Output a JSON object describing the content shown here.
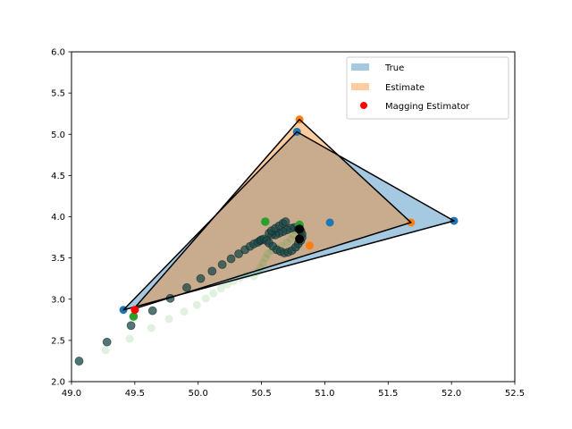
{
  "chart_data": {
    "type": "scatter",
    "xlim": [
      49.0,
      52.5
    ],
    "ylim": [
      2.0,
      6.0
    ],
    "x_ticks": [
      "49.0",
      "49.5",
      "50.0",
      "50.5",
      "51.0",
      "51.5",
      "52.0",
      "52.5"
    ],
    "y_ticks": [
      "2.0",
      "2.5",
      "3.0",
      "3.5",
      "4.0",
      "4.5",
      "5.0",
      "5.5",
      "6.0"
    ],
    "grid": false,
    "legend_position": "top-right",
    "legend": [
      {
        "label": "True",
        "kind": "patch",
        "color": "#1f77b4",
        "alpha": 0.4
      },
      {
        "label": "Estimate",
        "kind": "patch",
        "color": "#ff7f0e",
        "alpha": 0.4
      },
      {
        "label": "Magging Estimator",
        "kind": "marker",
        "color": "#ff0000"
      }
    ],
    "true_triangle": [
      [
        49.41,
        2.87
      ],
      [
        50.78,
        5.03
      ],
      [
        52.02,
        3.95
      ]
    ],
    "estimate_triangle": [
      [
        49.49,
        2.88
      ],
      [
        50.8,
        5.18
      ],
      [
        51.68,
        3.93
      ]
    ],
    "true_points": {
      "color": "#1f77b4",
      "points": [
        [
          49.41,
          2.87
        ],
        [
          50.78,
          5.03
        ],
        [
          52.02,
          3.95
        ],
        [
          51.04,
          3.93
        ]
      ]
    },
    "estimate_points": {
      "color": "#ff7f0e",
      "points": [
        [
          50.8,
          5.18
        ],
        [
          51.68,
          3.93
        ],
        [
          50.88,
          3.65
        ]
      ]
    },
    "magging_estimator": {
      "color": "#ff0000",
      "points": [
        [
          49.5,
          2.87
        ]
      ]
    },
    "path_dark": {
      "color": "#1a4a4a",
      "points": [
        [
          49.06,
          2.25
        ],
        [
          49.28,
          2.48
        ],
        [
          49.47,
          2.68
        ],
        [
          49.64,
          2.86
        ],
        [
          49.78,
          3.01
        ],
        [
          49.91,
          3.14
        ],
        [
          50.02,
          3.25
        ],
        [
          50.11,
          3.34
        ],
        [
          50.19,
          3.42
        ],
        [
          50.26,
          3.49
        ],
        [
          50.32,
          3.55
        ],
        [
          50.37,
          3.6
        ],
        [
          50.41,
          3.64
        ],
        [
          50.44,
          3.67
        ],
        [
          50.47,
          3.69
        ],
        [
          50.49,
          3.71
        ],
        [
          50.5,
          3.72
        ],
        [
          50.52,
          3.73
        ],
        [
          50.54,
          3.71
        ],
        [
          50.56,
          3.68
        ],
        [
          50.59,
          3.64
        ],
        [
          50.62,
          3.6
        ],
        [
          50.65,
          3.58
        ],
        [
          50.68,
          3.56
        ],
        [
          50.71,
          3.57
        ],
        [
          50.74,
          3.59
        ],
        [
          50.77,
          3.63
        ],
        [
          50.79,
          3.67
        ],
        [
          50.81,
          3.71
        ],
        [
          50.82,
          3.75
        ],
        [
          50.82,
          3.79
        ],
        [
          50.81,
          3.83
        ],
        [
          50.79,
          3.86
        ],
        [
          50.76,
          3.87
        ],
        [
          50.73,
          3.86
        ],
        [
          50.7,
          3.84
        ],
        [
          50.67,
          3.82
        ],
        [
          50.64,
          3.8
        ],
        [
          50.61,
          3.78
        ],
        [
          50.58,
          3.78
        ],
        [
          50.56,
          3.8
        ],
        [
          50.58,
          3.83
        ],
        [
          50.61,
          3.86
        ],
        [
          50.64,
          3.89
        ],
        [
          50.67,
          3.92
        ],
        [
          50.69,
          3.94
        ]
      ]
    },
    "path_green_faint": {
      "color": "#2ca02c",
      "points": [
        [
          49.06,
          2.23
        ],
        [
          49.27,
          2.38
        ],
        [
          49.46,
          2.52
        ],
        [
          49.63,
          2.65
        ],
        [
          49.77,
          2.76
        ],
        [
          49.89,
          2.85
        ],
        [
          49.99,
          2.93
        ],
        [
          50.06,
          3.01
        ],
        [
          50.12,
          3.07
        ],
        [
          50.18,
          3.13
        ],
        [
          50.23,
          3.18
        ],
        [
          50.28,
          3.22
        ],
        [
          50.33,
          3.26
        ],
        [
          50.38,
          3.29
        ],
        [
          50.44,
          3.28
        ],
        [
          50.47,
          3.33
        ],
        [
          50.49,
          3.38
        ],
        [
          50.51,
          3.44
        ],
        [
          50.53,
          3.5
        ],
        [
          50.55,
          3.55
        ],
        [
          50.58,
          3.59
        ],
        [
          50.62,
          3.62
        ],
        [
          50.66,
          3.65
        ],
        [
          50.7,
          3.69
        ],
        [
          50.73,
          3.73
        ],
        [
          50.75,
          3.78
        ],
        [
          50.77,
          3.83
        ],
        [
          50.79,
          3.88
        ],
        [
          50.8,
          3.91
        ]
      ]
    },
    "green_solid": {
      "color": "#2ca02c",
      "points": [
        [
          50.53,
          3.94
        ],
        [
          49.49,
          2.79
        ],
        [
          50.8,
          3.9
        ]
      ]
    },
    "black_points": {
      "color": "#000000",
      "points": [
        [
          50.8,
          3.85
        ],
        [
          50.8,
          3.73
        ]
      ]
    }
  }
}
